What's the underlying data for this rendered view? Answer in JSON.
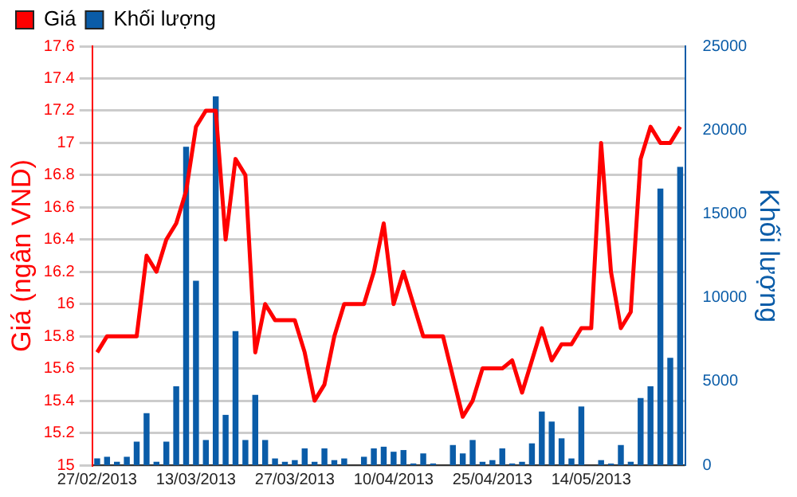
{
  "chart_data": {
    "type": "bar",
    "ylabel": "Giá (ngân VND)",
    "y2label": "Khối lượng",
    "categories": [
      "27/02/2013",
      null,
      null,
      null,
      null,
      null,
      null,
      null,
      null,
      null,
      "13/03/2013",
      null,
      null,
      null,
      null,
      null,
      null,
      null,
      null,
      null,
      "27/03/2013",
      null,
      null,
      null,
      null,
      null,
      null,
      null,
      null,
      null,
      "10/04/2013",
      null,
      null,
      null,
      null,
      null,
      null,
      null,
      null,
      null,
      "25/04/2013",
      null,
      null,
      null,
      null,
      null,
      null,
      null,
      null,
      null,
      "14/05/2013",
      null,
      null,
      null,
      null,
      null,
      null,
      null,
      null,
      null
    ],
    "series": [
      {
        "name": "Giá",
        "type": "line",
        "color": "#ff0000",
        "values": [
          15.7,
          15.8,
          15.8,
          15.8,
          15.8,
          16.3,
          16.2,
          16.4,
          16.5,
          16.7,
          17.1,
          17.2,
          17.2,
          16.4,
          16.9,
          16.8,
          15.7,
          16.0,
          15.9,
          15.9,
          15.9,
          15.7,
          15.4,
          15.5,
          15.8,
          16.0,
          16.0,
          16.0,
          16.2,
          16.5,
          16.0,
          16.2,
          16.0,
          15.8,
          15.8,
          15.8,
          15.55,
          15.3,
          15.4,
          15.6,
          15.6,
          15.6,
          15.65,
          15.45,
          15.65,
          15.85,
          15.65,
          15.75,
          15.75,
          15.85,
          15.85,
          17.0,
          16.2,
          15.85,
          15.95,
          16.9,
          17.1,
          17.0,
          17.0,
          17.1
        ]
      },
      {
        "name": "Khối lượng",
        "axis": "y2",
        "color": "#0a5ca8",
        "values": [
          400,
          500,
          200,
          500,
          1400,
          3100,
          200,
          1400,
          4700,
          19000,
          11000,
          1500,
          22000,
          3000,
          8000,
          1500,
          4200,
          1500,
          400,
          200,
          300,
          1000,
          200,
          1000,
          300,
          400,
          0,
          500,
          1000,
          1100,
          800,
          900,
          100,
          700,
          100,
          0,
          1200,
          700,
          1500,
          200,
          300,
          1000,
          100,
          200,
          1300,
          3200,
          2600,
          1600,
          400,
          3500,
          0,
          300,
          100,
          1200,
          200,
          4000,
          4700,
          16500,
          6400,
          17800
        ]
      }
    ],
    "ylim": [
      15,
      17.6
    ],
    "yticks": [
      15,
      15.2,
      15.4,
      15.6,
      15.8,
      16,
      16.2,
      16.4,
      16.6,
      16.8,
      17,
      17.2,
      17.4,
      17.6
    ],
    "y2lim": [
      0,
      25000
    ],
    "y2ticks": [
      0,
      5000,
      10000,
      15000,
      20000,
      25000
    ],
    "grid": "y",
    "legend": "top left",
    "marker": "none",
    "line_style": "solid"
  }
}
